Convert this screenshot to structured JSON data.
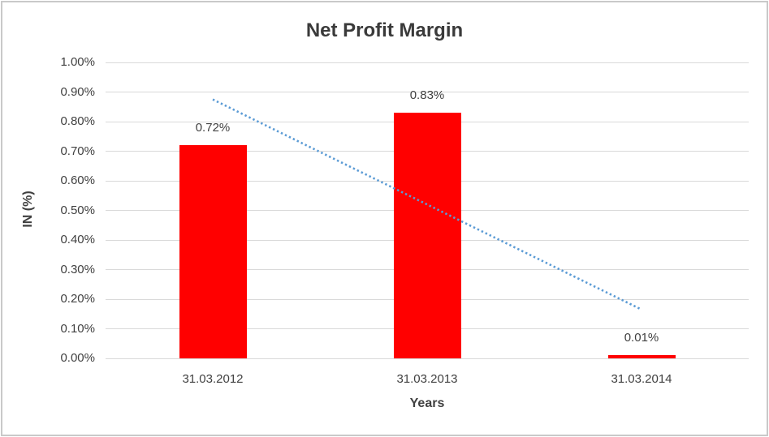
{
  "chart_data": {
    "type": "bar",
    "title": "Net Profit Margin",
    "xlabel": "Years",
    "ylabel": "IN (%)",
    "categories": [
      "31.03.2012",
      "31.03.2013",
      "31.03.2014"
    ],
    "series": [
      {
        "name": "Net Profit Margin",
        "values": [
          0.72,
          0.83,
          0.01
        ]
      }
    ],
    "data_labels": [
      "0.72%",
      "0.83%",
      "0.01%"
    ],
    "y_tick_labels": [
      "0.00%",
      "0.10%",
      "0.20%",
      "0.30%",
      "0.40%",
      "0.50%",
      "0.60%",
      "0.70%",
      "0.80%",
      "0.90%",
      "1.00%"
    ],
    "y_tick_values": [
      0.0,
      0.1,
      0.2,
      0.3,
      0.4,
      0.5,
      0.6,
      0.7,
      0.8,
      0.9,
      1.0
    ],
    "ylim": [
      0.0,
      1.0
    ],
    "grid": true,
    "legend": "none",
    "bar_color": "#ff0000",
    "gridline_color": "#d9d9d9",
    "text_color": "#404040",
    "frame_border_color": "#c9c9c9",
    "trendline": {
      "type": "linear",
      "style": "dotted",
      "color": "#5b9bd5",
      "start_value": 0.875,
      "end_value": 0.165
    }
  }
}
